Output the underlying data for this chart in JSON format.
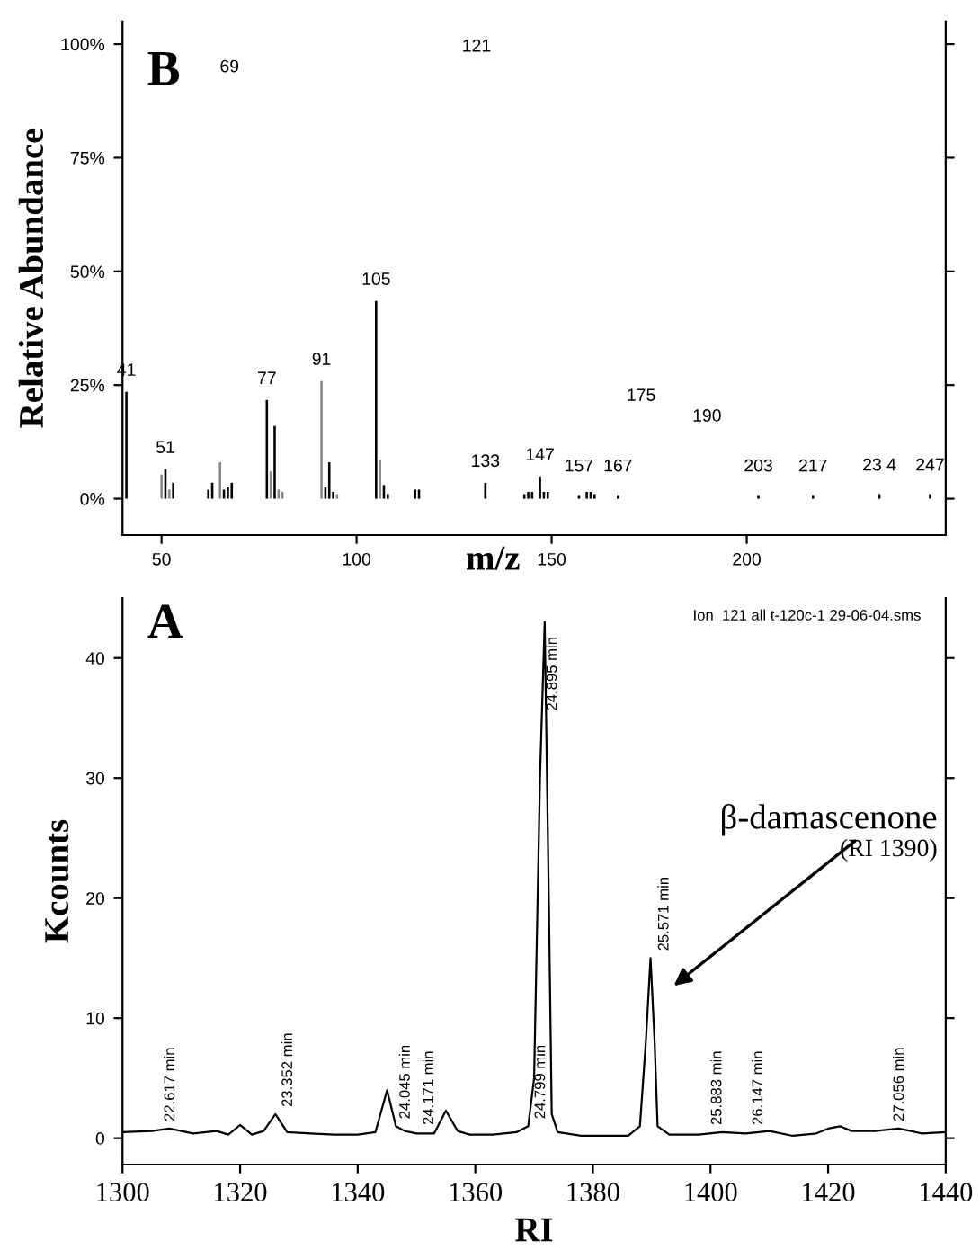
{
  "chart_data": [
    {
      "type": "bar",
      "ylabel": "Relative Abundance",
      "xlabel": "m/z",
      "grid": false,
      "legend": false,
      "x": [
        41,
        50,
        51,
        52,
        53,
        62,
        63,
        65,
        66,
        67,
        68,
        77,
        78,
        79,
        80,
        81,
        91,
        92,
        93,
        94,
        95,
        105,
        106,
        107,
        108,
        115,
        116,
        133,
        143,
        144,
        145,
        147,
        148,
        149,
        157,
        159,
        160,
        161,
        167,
        203,
        217,
        234,
        247
      ],
      "values": [
        23.5,
        5.3,
        6.5,
        2,
        3.5,
        2,
        3.5,
        8,
        2,
        2.5,
        3.5,
        21.7,
        6,
        16,
        2,
        1.5,
        25.9,
        2.5,
        8,
        1.5,
        1,
        43.5,
        8.6,
        3,
        1,
        2,
        2,
        3.5,
        1,
        1.5,
        1.5,
        4.9,
        1.5,
        1.5,
        0.8,
        1.5,
        1.5,
        1,
        0.8,
        0.8,
        0.8,
        1,
        1
      ],
      "colors": [
        "#000000",
        "#888888",
        "#000000",
        "#888888",
        "#000000",
        "#000000",
        "#000000",
        "#888888",
        "#000000",
        "#000000",
        "#000000",
        "#000000",
        "#888888",
        "#000000",
        "#888888",
        "#888888",
        "#888888",
        "#000000",
        "#000000",
        "#000000",
        "#888888",
        "#000000",
        "#888888",
        "#000000",
        "#000000",
        "#000000",
        "#000000",
        "#000000",
        "#000000",
        "#000000",
        "#000000",
        "#000000",
        "#000000",
        "#000000",
        "#000000",
        "#000000",
        "#000000",
        "#000000",
        "#000000",
        "#000000",
        "#000000",
        "#000000",
        "#000000"
      ],
      "xlim": [
        40,
        251
      ],
      "xticks": [
        50,
        100,
        150,
        200
      ],
      "ylim": [
        -8,
        105
      ],
      "yticks": [
        {
          "value": 0,
          "label": "0%"
        },
        {
          "value": 25,
          "label": "25%"
        },
        {
          "value": 50,
          "label": "50%"
        },
        {
          "value": 75,
          "label": "75%"
        },
        {
          "value": 100,
          "label": "100%"
        }
      ],
      "annotations": [
        "B",
        "121",
        "69",
        "175",
        "190",
        {
          "text": "41",
          "x": 41,
          "y": 23.5
        },
        {
          "text": "51",
          "x": 51,
          "y": 6.5
        },
        {
          "text": "77",
          "x": 77,
          "y": 21.7
        },
        {
          "text": "91",
          "x": 91,
          "y": 25.9
        },
        {
          "text": "105",
          "x": 105,
          "y": 43.5
        },
        {
          "text": "133",
          "x": 133,
          "y": 3.5
        },
        {
          "text": "147",
          "x": 147,
          "y": 4.9
        },
        {
          "text": "157",
          "x": 157,
          "y": 0.8
        },
        {
          "text": "167",
          "x": 167,
          "y": 0.8
        },
        {
          "text": "203",
          "x": 203,
          "y": 0.8
        },
        {
          "text": "217",
          "x": 217,
          "y": 0.8
        },
        {
          "text": "23 4",
          "x": 234,
          "y": 1
        },
        {
          "text": "247",
          "x": 247,
          "y": 1
        }
      ]
    },
    {
      "type": "line",
      "ylabel": "Kcounts",
      "xlabel": "RI",
      "grid": false,
      "legend": false,
      "color": "#000000",
      "line_style": "solid",
      "x": [
        1300,
        1305,
        1308,
        1312,
        1316,
        1318,
        1320,
        1322,
        1324,
        1326,
        1328,
        1332,
        1336,
        1340,
        1343,
        1345,
        1346.5,
        1348,
        1350,
        1353,
        1355,
        1357,
        1359,
        1363,
        1367,
        1369,
        1370,
        1371,
        1371.8,
        1372.5,
        1373,
        1374,
        1378,
        1382,
        1386,
        1388,
        1389,
        1389.8,
        1390.5,
        1391,
        1393,
        1398,
        1402,
        1406,
        1410,
        1414,
        1418,
        1420,
        1422,
        1424,
        1428,
        1432,
        1436,
        1440
      ],
      "values": [
        0.5,
        0.6,
        0.8,
        0.4,
        0.6,
        0.3,
        1.1,
        0.3,
        0.6,
        2.0,
        0.5,
        0.4,
        0.3,
        0.3,
        0.5,
        4.0,
        1.0,
        0.6,
        0.4,
        0.4,
        2.3,
        0.6,
        0.3,
        0.3,
        0.5,
        1.0,
        5,
        30,
        43,
        20,
        2,
        0.5,
        0.2,
        0.2,
        0.2,
        1.0,
        8,
        15,
        8,
        1,
        0.3,
        0.3,
        0.5,
        0.4,
        0.6,
        0.2,
        0.4,
        0.8,
        1.0,
        0.6,
        0.6,
        0.8,
        0.4,
        0.5
      ],
      "xlim": [
        1300,
        1440
      ],
      "xticks": [
        1300,
        1320,
        1340,
        1360,
        1380,
        1400,
        1420,
        1440
      ],
      "ylim": [
        -2.2,
        45
      ],
      "yticks": [
        0,
        10,
        20,
        30,
        40
      ],
      "annotations": [
        "A",
        "Ion  121 all t-120c-1 29-06-04.sms",
        {
          "text": "22.617 min",
          "x": 1307,
          "y": 0.8
        },
        {
          "text": "23.352 min",
          "x": 1327,
          "y": 2.0
        },
        {
          "text": "24.045 min",
          "x": 1347,
          "y": 1.0
        },
        {
          "text": "24.171 min",
          "x": 1351,
          "y": 0.5
        },
        {
          "text": "24.799 min",
          "x": 1370,
          "y": 1.0
        },
        {
          "text": "24.895 min",
          "x": 1372,
          "y": 35
        },
        {
          "text": "25.571 min",
          "x": 1391,
          "y": 15
        },
        {
          "text": "25.883 min",
          "x": 1400,
          "y": 0.5
        },
        {
          "text": "26.147 min",
          "x": 1407,
          "y": 0.5
        },
        {
          "text": "27.056 min",
          "x": 1431,
          "y": 0.8
        },
        "β-damascenone",
        "(RI 1390)"
      ]
    }
  ]
}
